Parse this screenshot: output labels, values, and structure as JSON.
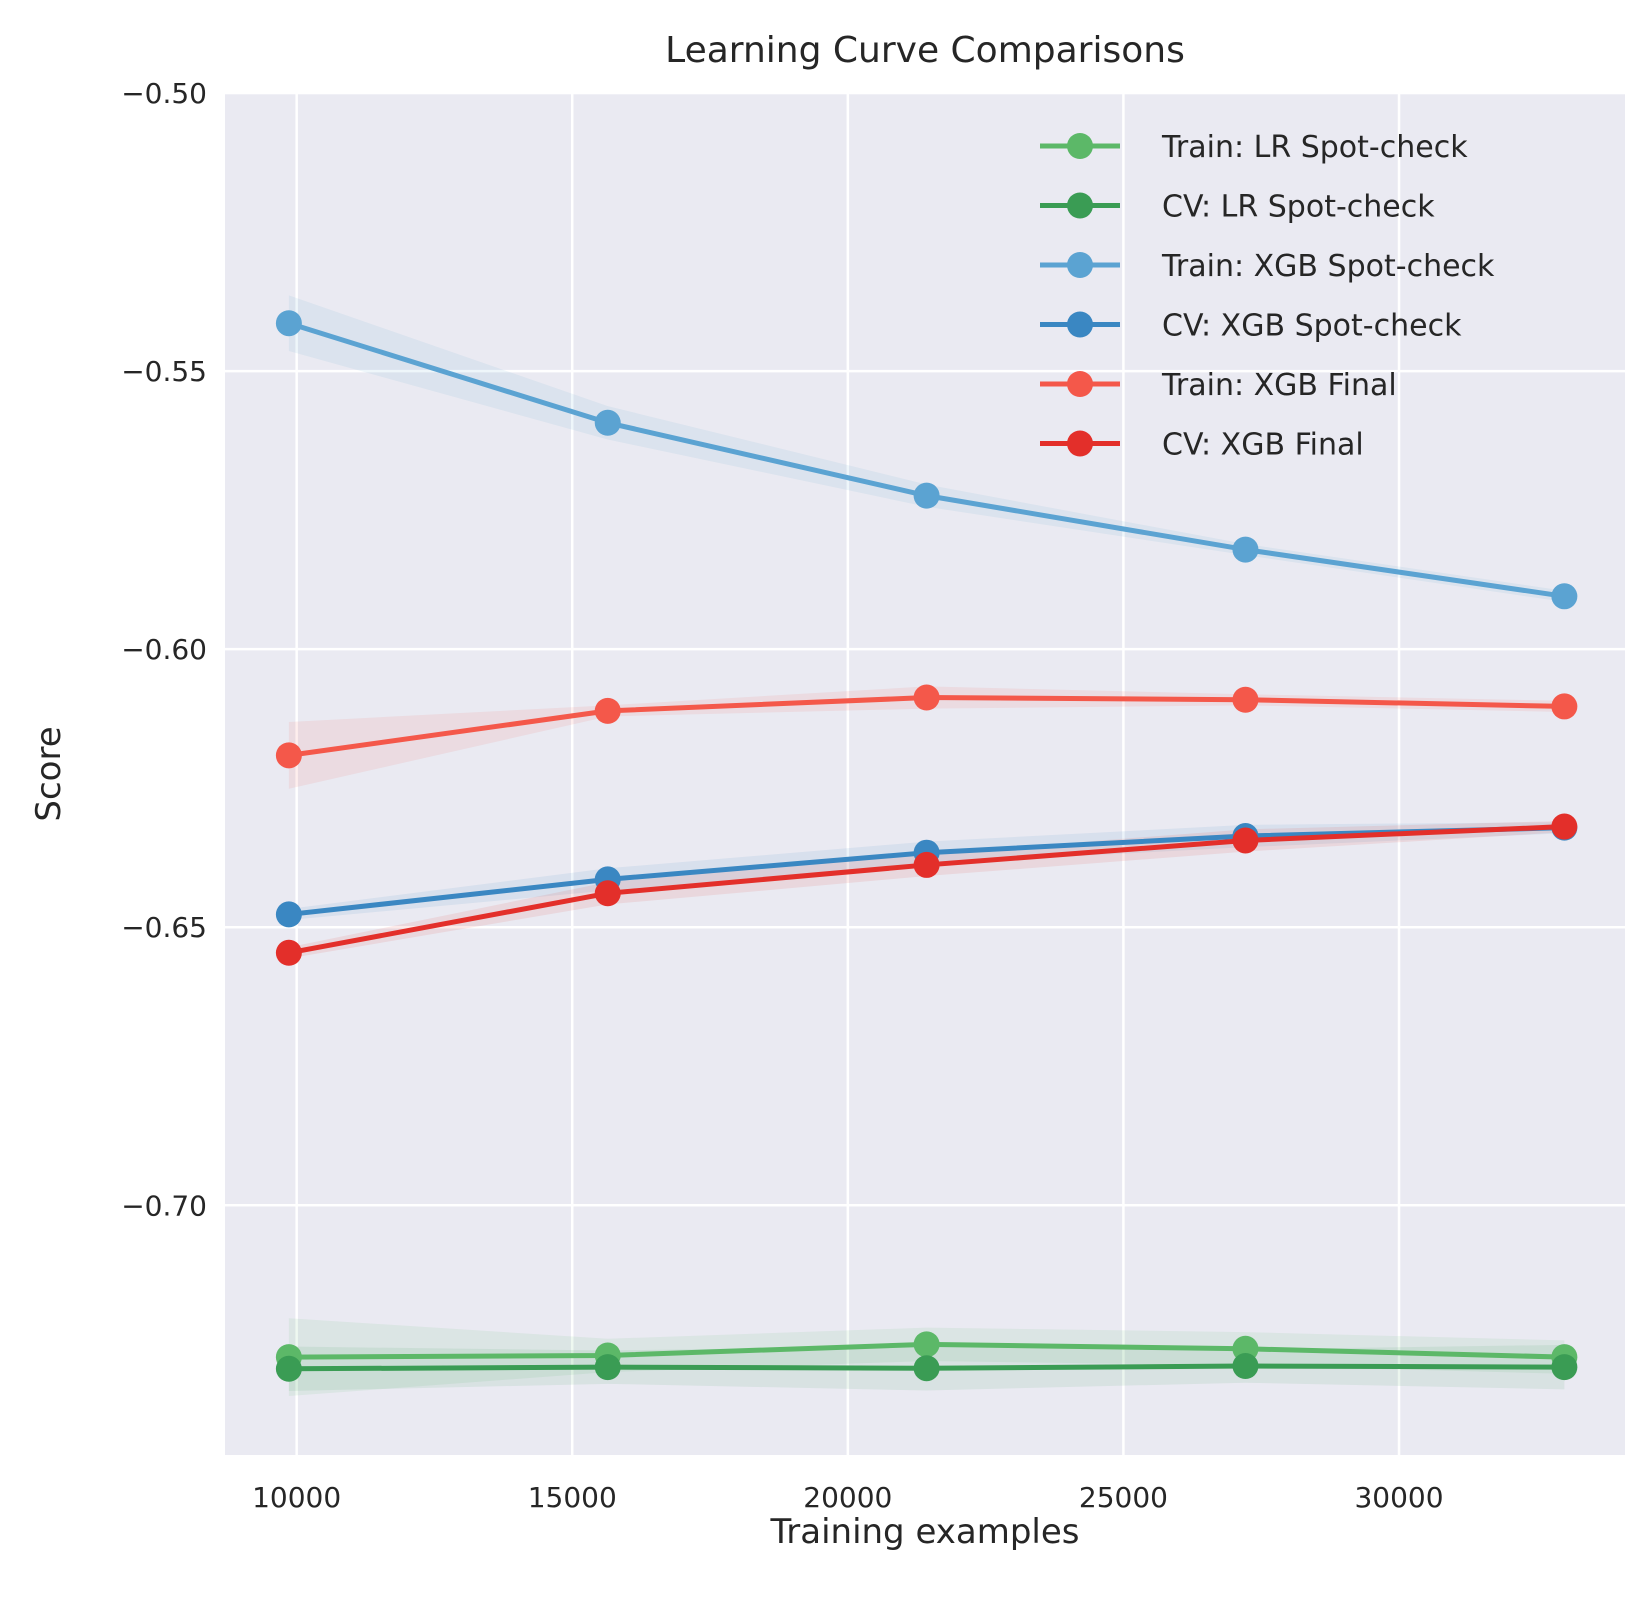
{
  "chart_data": {
    "type": "line",
    "title": "Learning Curve Comparisons",
    "xlabel": "Training examples",
    "ylabel": "Score",
    "xlim": [
      8700,
      34100
    ],
    "ylim": [
      -0.7449,
      -0.5
    ],
    "xticks": [
      10000,
      15000,
      20000,
      25000,
      30000
    ],
    "xtick_labels": [
      "10000",
      "15000",
      "20000",
      "25000",
      "30000"
    ],
    "yticks": [
      -0.5,
      -0.55,
      -0.6,
      -0.65,
      -0.7
    ],
    "ytick_labels": [
      "−0.50",
      "−0.55",
      "−0.60",
      "−0.65",
      "−0.70"
    ],
    "grid": true,
    "legend_position": "top-right",
    "background": "#eaeaf2",
    "x": [
      9859,
      15644,
      21429,
      27214,
      33000
    ],
    "series": [
      {
        "name": "Train: LR Spot-check",
        "color": "#5cb868",
        "values": [
          -0.7273,
          -0.727,
          -0.725,
          -0.7258,
          -0.7273
        ],
        "band": [
          0.007,
          0.003,
          0.003,
          0.003,
          0.003
        ]
      },
      {
        "name": "CV: LR Spot-check",
        "color": "#3a9c54",
        "values": [
          -0.7294,
          -0.7291,
          -0.7293,
          -0.7289,
          -0.7291
        ],
        "band": [
          0.004,
          0.003,
          0.004,
          0.003,
          0.004
        ]
      },
      {
        "name": "Train: XGB Spot-check",
        "color": "#5ba3d2",
        "values": [
          -0.5414,
          -0.5593,
          -0.5724,
          -0.5821,
          -0.5905
        ],
        "band": [
          0.005,
          0.003,
          0.002,
          0.001,
          0.001
        ]
      },
      {
        "name": "CV: XGB Spot-check",
        "color": "#3a87c2",
        "values": [
          -0.6477,
          -0.6414,
          -0.6366,
          -0.6336,
          -0.6321
        ],
        "band": [
          0.001,
          0.002,
          0.002,
          0.002,
          0.001
        ]
      },
      {
        "name": "Train: XGB Final",
        "color": "#f4584a",
        "values": [
          -0.6191,
          -0.6111,
          -0.6087,
          -0.6091,
          -0.6103
        ],
        "band": [
          0.006,
          0.001,
          0.002,
          0.001,
          0.001
        ]
      },
      {
        "name": "CV: XGB Final",
        "color": "#e32f2a",
        "values": [
          -0.6546,
          -0.6439,
          -0.6388,
          -0.6344,
          -0.6319
        ],
        "band": [
          0.001,
          0.002,
          0.002,
          0.002,
          0.001
        ]
      }
    ]
  }
}
